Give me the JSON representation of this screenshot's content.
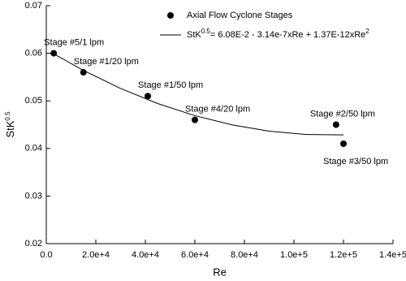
{
  "chart_data": {
    "type": "scatter",
    "xlabel": "Re",
    "ylabel": [
      {
        "text": "StK"
      },
      {
        "text": "0.5",
        "sup": true
      }
    ],
    "xlim": [
      0,
      140000
    ],
    "xticks": [
      {
        "value": 0,
        "label": "0.0"
      },
      {
        "value": 20000,
        "label": "2.0e+4"
      },
      {
        "value": 40000,
        "label": "4.0e+4"
      },
      {
        "value": 60000,
        "label": "6.0e+4"
      },
      {
        "value": 80000,
        "label": "8.0e+4"
      },
      {
        "value": 100000,
        "label": "1.0e+5"
      },
      {
        "value": 120000,
        "label": "1.2e+5"
      },
      {
        "value": 140000,
        "label": "1.4e+5"
      }
    ],
    "ylim": [
      0.02,
      0.07
    ],
    "yticks": [
      {
        "value": 0.02,
        "label": "0.02"
      },
      {
        "value": 0.03,
        "label": "0.03"
      },
      {
        "value": 0.04,
        "label": "0.04"
      },
      {
        "value": 0.05,
        "label": "0.05"
      },
      {
        "value": 0.06,
        "label": "0.06"
      },
      {
        "value": 0.07,
        "label": "0.07"
      }
    ],
    "series": [
      {
        "name": [
          {
            "text": "Axial Flow Cyclone Stages"
          }
        ],
        "mode": "markers",
        "color": "#000000",
        "x": [
          3000,
          15000,
          41000,
          60000,
          117000,
          120000
        ],
        "values": [
          0.06,
          0.056,
          0.051,
          0.046,
          0.045,
          0.041
        ],
        "labels": [
          "Stage #5/1 lpm",
          "Stage #1/20 lpm",
          "Stage #1/50 lpm",
          "Stage #4/20 lpm",
          "Stage #2/50 lpm",
          "Stage #3/50 lpm"
        ]
      },
      {
        "name": [
          {
            "text": "StK"
          },
          {
            "text": "0.5",
            "sup": true
          },
          {
            "text": "= 6.08E-2 - 3.14e-7xRe + 1.37E-12xRe"
          },
          {
            "text": "2",
            "sup": true
          }
        ],
        "mode": "line",
        "color": "#000000",
        "x": [
          3000,
          15000,
          30000,
          45000,
          60000,
          75000,
          90000,
          105000,
          120000
        ],
        "values": [
          0.05987,
          0.0564,
          0.05261,
          0.04944,
          0.04689,
          0.04496,
          0.04364,
          0.04293,
          0.04285
        ]
      }
    ]
  }
}
